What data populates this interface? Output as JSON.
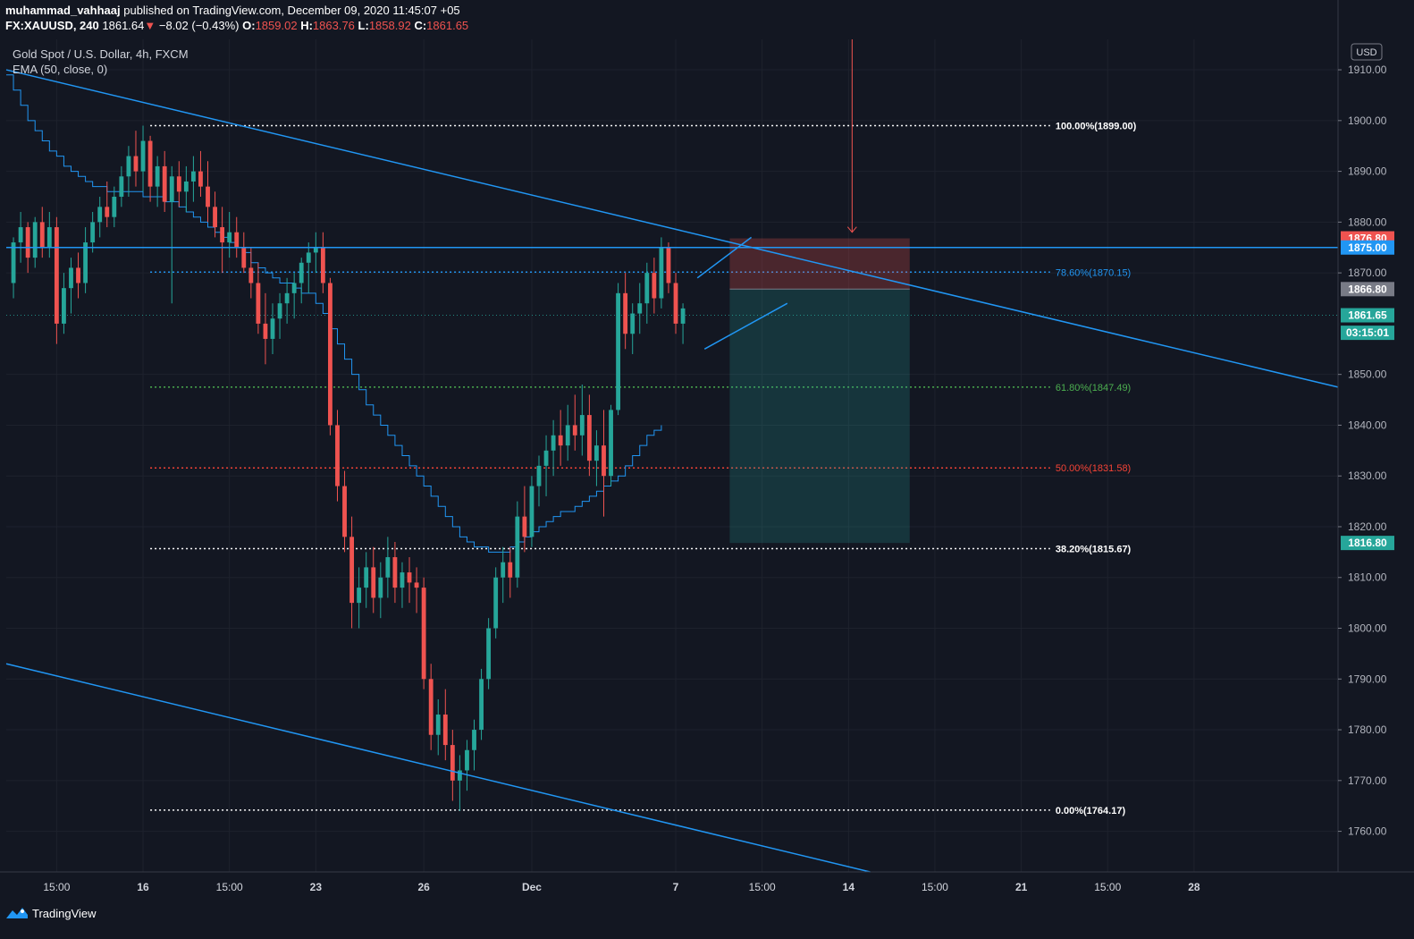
{
  "header": {
    "author": "muhammad_vahhaaj",
    "published_text": "published on TradingView.com, December 09, 2020 11:45:07 +05",
    "symbol": "FX:XAUUSD, 240",
    "last": "1861.64",
    "change_arrow": "▼",
    "change": "−8.02 (−0.43%)",
    "o_label": "O:",
    "o_value": "1859.02",
    "h_label": "H:",
    "h_value": "1863.76",
    "l_label": "L:",
    "l_value": "1858.92",
    "c_label": "C:",
    "c_value": "1861.65"
  },
  "legend": {
    "title": "Gold Spot / U.S. Dollar, 4h, FXCM",
    "indicator": "EMA (50, close, 0)"
  },
  "footer": {
    "logo_text": "TradingView"
  },
  "colors": {
    "background": "#131722",
    "up": "#26a69a",
    "down": "#ef5350",
    "line": "#2196f3",
    "text": "#d1d4dc"
  },
  "chart_data": {
    "type": "candlestick",
    "currency_label": "USD",
    "y_ticks": [
      "1910.00",
      "1900.00",
      "1890.00",
      "1880.00",
      "1870.00",
      "1850.00",
      "1840.00",
      "1830.00",
      "1820.00",
      "1810.00",
      "1800.00",
      "1790.00",
      "1780.00",
      "1770.00",
      "1760.00"
    ],
    "ylim": [
      1752,
      1916
    ],
    "x_ticks": [
      {
        "label": "15:00",
        "x_index": 7
      },
      {
        "label": "16",
        "x_index": 19
      },
      {
        "label": "15:00",
        "x_index": 31
      },
      {
        "label": "23",
        "x_index": 43
      },
      {
        "label": "26",
        "x_index": 58
      },
      {
        "label": "Dec",
        "x_index": 73
      },
      {
        "label": "7",
        "x_index": 93
      },
      {
        "label": "15:00",
        "x_index": 105
      },
      {
        "label": "14",
        "x_index": 117
      },
      {
        "label": "15:00",
        "x_index": 129
      },
      {
        "label": "21",
        "x_index": 141
      },
      {
        "label": "15:00",
        "x_index": 153
      },
      {
        "label": "28",
        "x_index": 165
      }
    ],
    "x_range": [
      0,
      185
    ],
    "price_badges": [
      {
        "value": "1876.80",
        "price": 1876.8,
        "color": "#ef5350"
      },
      {
        "value": "1875.00",
        "price": 1875.0,
        "color": "#2196f3"
      },
      {
        "value": "1866.80",
        "price": 1866.8,
        "color": "#787b86"
      },
      {
        "value": "1861.65",
        "price": 1861.65,
        "color": "#26a69a"
      },
      {
        "value": "03:15:01",
        "price": 1858.2,
        "color": "#26a69a"
      },
      {
        "value": "1816.80",
        "price": 1816.8,
        "color": "#26a69a"
      }
    ],
    "fib_levels": [
      {
        "label": "100.00%(1899.00)",
        "price": 1899.0,
        "color": "#ffffff"
      },
      {
        "label": "78.60%(1870.15)",
        "price": 1870.15,
        "color": "#2196f3"
      },
      {
        "label": "61.80%(1847.49)",
        "price": 1847.49,
        "color": "#4caf50"
      },
      {
        "label": "50.00%(1831.58)",
        "price": 1831.58,
        "color": "#f44336"
      },
      {
        "label": "38.20%(1815.67)",
        "price": 1815.67,
        "color": "#ffffff"
      },
      {
        "label": "0.00%(1764.17)",
        "price": 1764.17,
        "color": "#ffffff"
      }
    ],
    "fib_x_range": [
      20,
      145
    ],
    "position": {
      "x_start": 100.5,
      "x_end": 125.5,
      "entry": 1866.8,
      "stop": 1876.8,
      "target": 1816.8
    },
    "horizontal_line": 1875.0,
    "trend_lines": [
      {
        "from": [
          0,
          1910
        ],
        "to": [
          185,
          1847.5
        ]
      },
      {
        "from": [
          0,
          1793
        ],
        "to": [
          120,
          1752
        ]
      },
      {
        "from": [
          96,
          1869
        ],
        "to": [
          103.5,
          1877
        ]
      },
      {
        "from": [
          97,
          1855
        ],
        "to": [
          108.5,
          1864
        ]
      }
    ],
    "signal_arrow": {
      "x_index": 117.5,
      "price_top": 1916,
      "price_bottom": 1878
    },
    "candles": [
      [
        1868,
        1877,
        1865,
        1876
      ],
      [
        1876,
        1882,
        1872,
        1879
      ],
      [
        1879,
        1880,
        1870,
        1873
      ],
      [
        1873,
        1881,
        1871,
        1880
      ],
      [
        1880,
        1883,
        1873,
        1875
      ],
      [
        1875,
        1882,
        1873,
        1879
      ],
      [
        1879,
        1881,
        1856,
        1860
      ],
      [
        1860,
        1870,
        1858,
        1867
      ],
      [
        1867,
        1873,
        1862,
        1871
      ],
      [
        1871,
        1874,
        1865,
        1868
      ],
      [
        1868,
        1879,
        1866,
        1876
      ],
      [
        1876,
        1882,
        1874,
        1880
      ],
      [
        1880,
        1885,
        1877,
        1883
      ],
      [
        1883,
        1888,
        1879,
        1881
      ],
      [
        1881,
        1887,
        1879,
        1885
      ],
      [
        1885,
        1891,
        1883,
        1889
      ],
      [
        1889,
        1895,
        1885,
        1893
      ],
      [
        1893,
        1898,
        1887,
        1890
      ],
      [
        1890,
        1899,
        1886,
        1896
      ],
      [
        1896,
        1897,
        1884,
        1887
      ],
      [
        1887,
        1893,
        1883,
        1891
      ],
      [
        1891,
        1894,
        1882,
        1884
      ],
      [
        1884,
        1891,
        1864,
        1889
      ],
      [
        1889,
        1892,
        1883,
        1886
      ],
      [
        1886,
        1891,
        1882,
        1888
      ],
      [
        1888,
        1893,
        1884,
        1890
      ],
      [
        1890,
        1894,
        1885,
        1887
      ],
      [
        1887,
        1892,
        1880,
        1883
      ],
      [
        1883,
        1886,
        1877,
        1879
      ],
      [
        1879,
        1883,
        1870,
        1876
      ],
      [
        1876,
        1882,
        1873,
        1878
      ],
      [
        1878,
        1881,
        1873,
        1875
      ],
      [
        1875,
        1878,
        1870,
        1871
      ],
      [
        1871,
        1875,
        1865,
        1868
      ],
      [
        1868,
        1872,
        1858,
        1860
      ],
      [
        1860,
        1866,
        1852,
        1857
      ],
      [
        1857,
        1864,
        1854,
        1861
      ],
      [
        1861,
        1866,
        1857,
        1864
      ],
      [
        1864,
        1869,
        1860,
        1866
      ],
      [
        1866,
        1870,
        1861,
        1868
      ],
      [
        1868,
        1873,
        1864,
        1872
      ],
      [
        1872,
        1876,
        1866,
        1874
      ],
      [
        1874,
        1878,
        1870,
        1875
      ],
      [
        1875,
        1878,
        1866,
        1868
      ],
      [
        1868,
        1869,
        1838,
        1840
      ],
      [
        1840,
        1843,
        1825,
        1828
      ],
      [
        1828,
        1831,
        1815,
        1818
      ],
      [
        1818,
        1822,
        1800,
        1805
      ],
      [
        1805,
        1812,
        1800,
        1808
      ],
      [
        1808,
        1815,
        1804,
        1812
      ],
      [
        1812,
        1816,
        1803,
        1806
      ],
      [
        1806,
        1813,
        1802,
        1810
      ],
      [
        1810,
        1818,
        1806,
        1814
      ],
      [
        1814,
        1817,
        1805,
        1808
      ],
      [
        1808,
        1813,
        1804,
        1811
      ],
      [
        1811,
        1814,
        1805,
        1809
      ],
      [
        1809,
        1812,
        1803,
        1808
      ],
      [
        1808,
        1810,
        1788,
        1790
      ],
      [
        1790,
        1793,
        1776,
        1779
      ],
      [
        1779,
        1786,
        1775,
        1783
      ],
      [
        1783,
        1788,
        1774,
        1777
      ],
      [
        1777,
        1780,
        1766,
        1770
      ],
      [
        1770,
        1775,
        1764,
        1772
      ],
      [
        1772,
        1778,
        1768,
        1776
      ],
      [
        1776,
        1782,
        1772,
        1780
      ],
      [
        1780,
        1792,
        1778,
        1790
      ],
      [
        1790,
        1802,
        1788,
        1800
      ],
      [
        1800,
        1812,
        1798,
        1810
      ],
      [
        1810,
        1816,
        1805,
        1813
      ],
      [
        1813,
        1816,
        1806,
        1810
      ],
      [
        1810,
        1825,
        1808,
        1822
      ],
      [
        1822,
        1828,
        1815,
        1818
      ],
      [
        1818,
        1830,
        1816,
        1828
      ],
      [
        1828,
        1834,
        1824,
        1832
      ],
      [
        1832,
        1838,
        1826,
        1835
      ],
      [
        1835,
        1841,
        1830,
        1838
      ],
      [
        1838,
        1843,
        1832,
        1836
      ],
      [
        1836,
        1844,
        1833,
        1840
      ],
      [
        1840,
        1846,
        1835,
        1838
      ],
      [
        1838,
        1848,
        1834,
        1842
      ],
      [
        1842,
        1846,
        1830,
        1833
      ],
      [
        1833,
        1839,
        1828,
        1836
      ],
      [
        1836,
        1843,
        1822,
        1830
      ],
      [
        1830,
        1844,
        1828,
        1843
      ],
      [
        1843,
        1868,
        1842,
        1866
      ],
      [
        1866,
        1870,
        1855,
        1858
      ],
      [
        1858,
        1864,
        1854,
        1862
      ],
      [
        1862,
        1868,
        1858,
        1864
      ],
      [
        1864,
        1872,
        1860,
        1870
      ],
      [
        1870,
        1873,
        1862,
        1865
      ],
      [
        1865,
        1877,
        1863,
        1875
      ],
      [
        1875,
        1876,
        1866,
        1868
      ],
      [
        1868,
        1870,
        1858,
        1860
      ],
      [
        1860,
        1864,
        1856,
        1863
      ]
    ],
    "candle_x_start": 1,
    "ema": [
      1909,
      1906,
      1903,
      1900,
      1898,
      1896,
      1894,
      1893,
      1891,
      1890,
      1889,
      1888,
      1887,
      1887,
      1886,
      1886,
      1886,
      1886,
      1886,
      1885,
      1885,
      1885,
      1884,
      1884,
      1883,
      1882,
      1881,
      1880,
      1879,
      1878,
      1877,
      1876,
      1875,
      1874,
      1872,
      1871,
      1870,
      1869,
      1868,
      1868,
      1867,
      1866,
      1866,
      1864,
      1862,
      1859,
      1856,
      1853,
      1850,
      1847,
      1844,
      1842,
      1840,
      1838,
      1836,
      1834,
      1832,
      1830,
      1828,
      1826,
      1824,
      1822,
      1820,
      1818,
      1817,
      1816,
      1816,
      1815,
      1815,
      1815,
      1816,
      1817,
      1818,
      1819,
      1820,
      1821,
      1822,
      1823,
      1823,
      1824,
      1825,
      1826,
      1827,
      1828,
      1829,
      1830,
      1832,
      1834,
      1836,
      1838,
      1839,
      1840
    ]
  }
}
